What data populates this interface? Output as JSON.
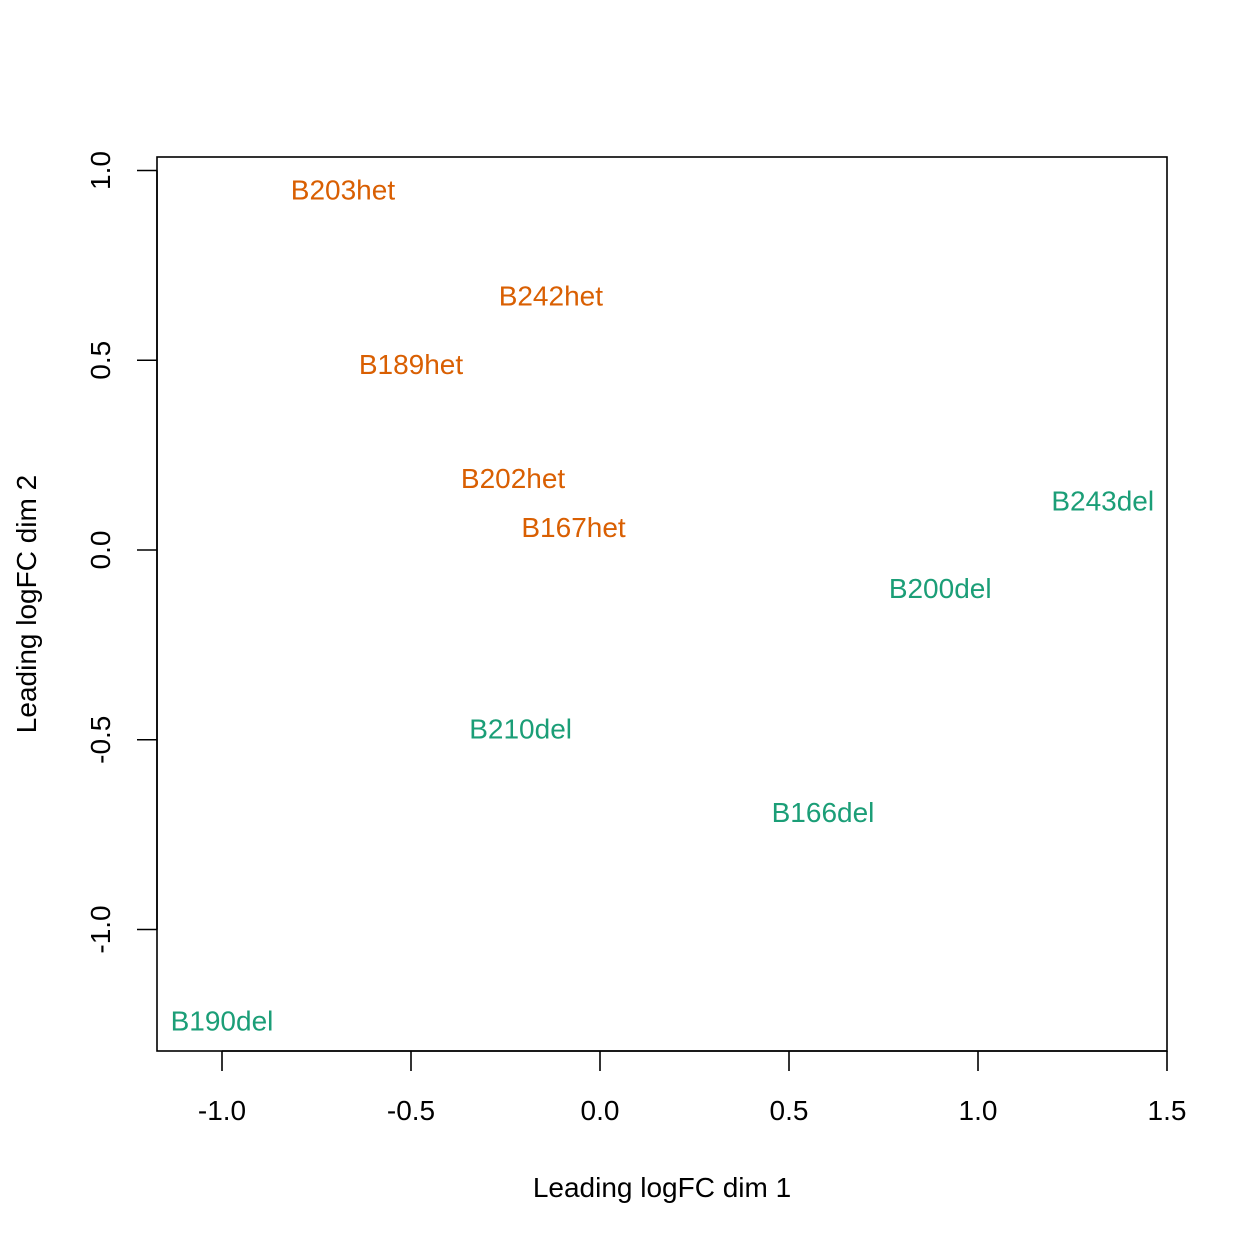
{
  "chart_data": {
    "type": "scatter",
    "title": "",
    "xlabel": "Leading logFC dim 1",
    "ylabel": "Leading logFC dim 2",
    "xlim": [
      -1.17,
      1.5
    ],
    "ylim": [
      -1.32,
      1.04
    ],
    "xticks": [
      -1.0,
      -0.5,
      0.0,
      0.5,
      1.0,
      1.5
    ],
    "xtick_labels": [
      "-1.0",
      "-0.5",
      "0.0",
      "0.5",
      "1.0",
      "1.5"
    ],
    "yticks": [
      -1.0,
      -0.5,
      0.0,
      0.5,
      1.0
    ],
    "ytick_labels": [
      "-1.0",
      "-0.5",
      "0.0",
      "0.5",
      "1.0"
    ],
    "grid": false,
    "legend": null,
    "marker": "text-label",
    "series": [
      {
        "name": "het",
        "color": "#D95F02",
        "points": [
          {
            "label": "B203het",
            "x": -0.68,
            "y": 0.95
          },
          {
            "label": "B242het",
            "x": -0.13,
            "y": 0.67
          },
          {
            "label": "B189het",
            "x": -0.5,
            "y": 0.49
          },
          {
            "label": "B202het",
            "x": -0.23,
            "y": 0.19
          },
          {
            "label": "B167het",
            "x": -0.07,
            "y": 0.06
          }
        ]
      },
      {
        "name": "del",
        "color": "#1B9E77",
        "points": [
          {
            "label": "B243del",
            "x": 1.33,
            "y": 0.13
          },
          {
            "label": "B200del",
            "x": 0.9,
            "y": -0.1
          },
          {
            "label": "B210del",
            "x": -0.21,
            "y": -0.47
          },
          {
            "label": "B166del",
            "x": 0.59,
            "y": -0.69
          },
          {
            "label": "B190del",
            "x": -1.0,
            "y": -1.24
          }
        ]
      }
    ]
  }
}
